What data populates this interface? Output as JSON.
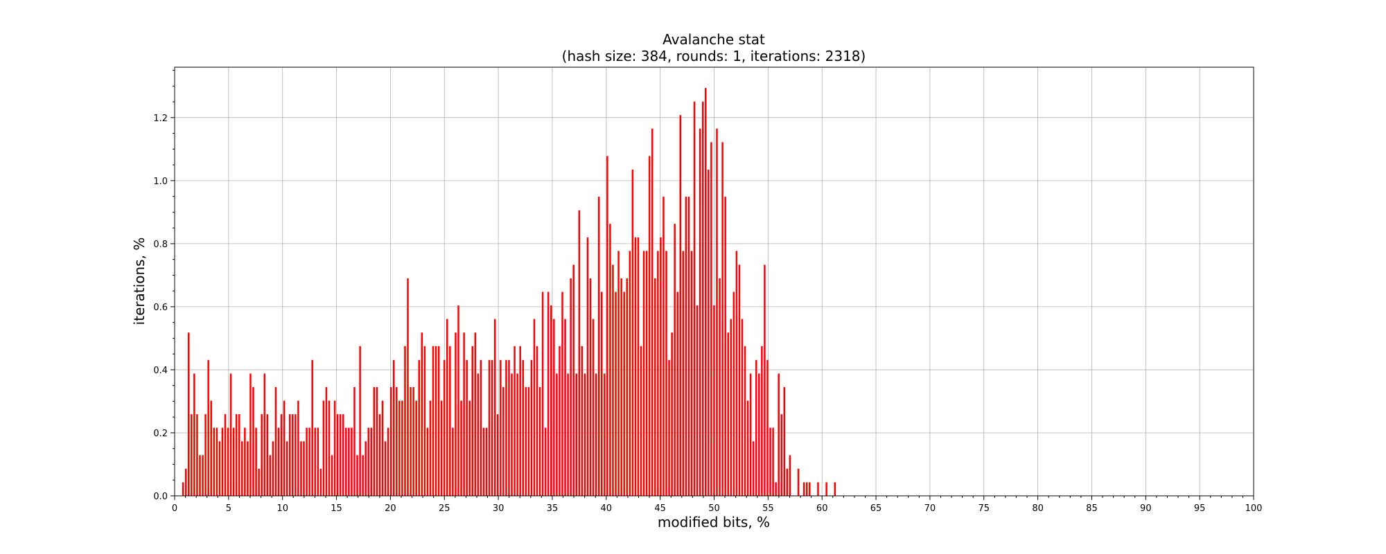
{
  "chart_data": {
    "type": "bar",
    "title": "Avalanche stat",
    "subtitle": "(hash size: 384, rounds: 1, iterations: 2318)",
    "xlabel": "modified bits, %",
    "ylabel": "iterations, %",
    "xlim": [
      0,
      100
    ],
    "ylim": [
      0,
      1.36
    ],
    "x_ticks": [
      0,
      5,
      10,
      15,
      20,
      25,
      30,
      35,
      40,
      45,
      50,
      55,
      60,
      65,
      70,
      75,
      80,
      85,
      90,
      95,
      100
    ],
    "y_ticks": [
      0.0,
      0.2,
      0.4,
      0.6,
      0.8,
      1.0,
      1.2
    ],
    "x_tick_labels": [
      "0",
      "5",
      "10",
      "15",
      "20",
      "25",
      "30",
      "35",
      "40",
      "45",
      "50",
      "55",
      "60",
      "65",
      "70",
      "75",
      "80",
      "85",
      "90",
      "95",
      "100"
    ],
    "y_tick_labels": [
      "0.0",
      "0.2",
      "0.4",
      "0.6",
      "0.8",
      "1.0",
      "1.2"
    ],
    "grid": true,
    "bar_color": "#ff0000",
    "bin_width_percent": 0.2604,
    "series": [
      {
        "values": [
          0,
          0,
          0,
          0.043,
          0.086,
          0.518,
          0.259,
          0.388,
          0.259,
          0.129,
          0.129,
          0.259,
          0.431,
          0.302,
          0.216,
          0.216,
          0.173,
          0.216,
          0.259,
          0.216,
          0.388,
          0.216,
          0.259,
          0.259,
          0.173,
          0.216,
          0.173,
          0.388,
          0.345,
          0.216,
          0.086,
          0.259,
          0.388,
          0.259,
          0.129,
          0.173,
          0.345,
          0.216,
          0.259,
          0.302,
          0.173,
          0.259,
          0.259,
          0.259,
          0.302,
          0.173,
          0.173,
          0.216,
          0.216,
          0.431,
          0.216,
          0.216,
          0.086,
          0.302,
          0.345,
          0.302,
          0.129,
          0.302,
          0.259,
          0.259,
          0.259,
          0.216,
          0.216,
          0.216,
          0.345,
          0.129,
          0.475,
          0.129,
          0.173,
          0.216,
          0.216,
          0.345,
          0.345,
          0.259,
          0.302,
          0.173,
          0.216,
          0.345,
          0.431,
          0.345,
          0.302,
          0.302,
          0.475,
          0.69,
          0.345,
          0.345,
          0.302,
          0.431,
          0.518,
          0.475,
          0.216,
          0.302,
          0.475,
          0.475,
          0.475,
          0.302,
          0.431,
          0.561,
          0.475,
          0.216,
          0.518,
          0.604,
          0.302,
          0.518,
          0.431,
          0.302,
          0.475,
          0.518,
          0.388,
          0.431,
          0.216,
          0.216,
          0.431,
          0.431,
          0.561,
          0.259,
          0.431,
          0.345,
          0.431,
          0.431,
          0.388,
          0.475,
          0.388,
          0.475,
          0.431,
          0.345,
          0.345,
          0.431,
          0.561,
          0.475,
          0.345,
          0.647,
          0.216,
          0.647,
          0.604,
          0.561,
          0.388,
          0.475,
          0.647,
          0.561,
          0.388,
          0.69,
          0.733,
          0.388,
          0.906,
          0.475,
          0.388,
          0.82,
          0.69,
          0.561,
          0.388,
          0.949,
          0.647,
          0.388,
          1.078,
          0.863,
          0.733,
          0.647,
          0.777,
          0.69,
          0.647,
          0.69,
          0.777,
          1.035,
          0.82,
          0.82,
          0.475,
          0.777,
          0.777,
          1.078,
          1.165,
          0.69,
          0.777,
          0.82,
          0.949,
          0.777,
          0.431,
          0.518,
          0.863,
          0.647,
          1.208,
          0.777,
          0.949,
          0.949,
          0.777,
          1.251,
          0.604,
          1.165,
          1.251,
          1.294,
          1.035,
          1.122,
          0.604,
          1.165,
          0.69,
          1.122,
          0.949,
          0.518,
          0.561,
          0.647,
          0.777,
          0.733,
          0.561,
          0.475,
          0.302,
          0.388,
          0.173,
          0.431,
          0.388,
          0.475,
          0.733,
          0.431,
          0.216,
          0.216,
          0.043,
          0.388,
          0.259,
          0.345,
          0.086,
          0.129,
          0,
          0,
          0.086,
          0,
          0.043,
          0.043,
          0.043,
          0,
          0,
          0.043,
          0,
          0,
          0.043,
          0,
          0,
          0.043
        ]
      }
    ]
  }
}
